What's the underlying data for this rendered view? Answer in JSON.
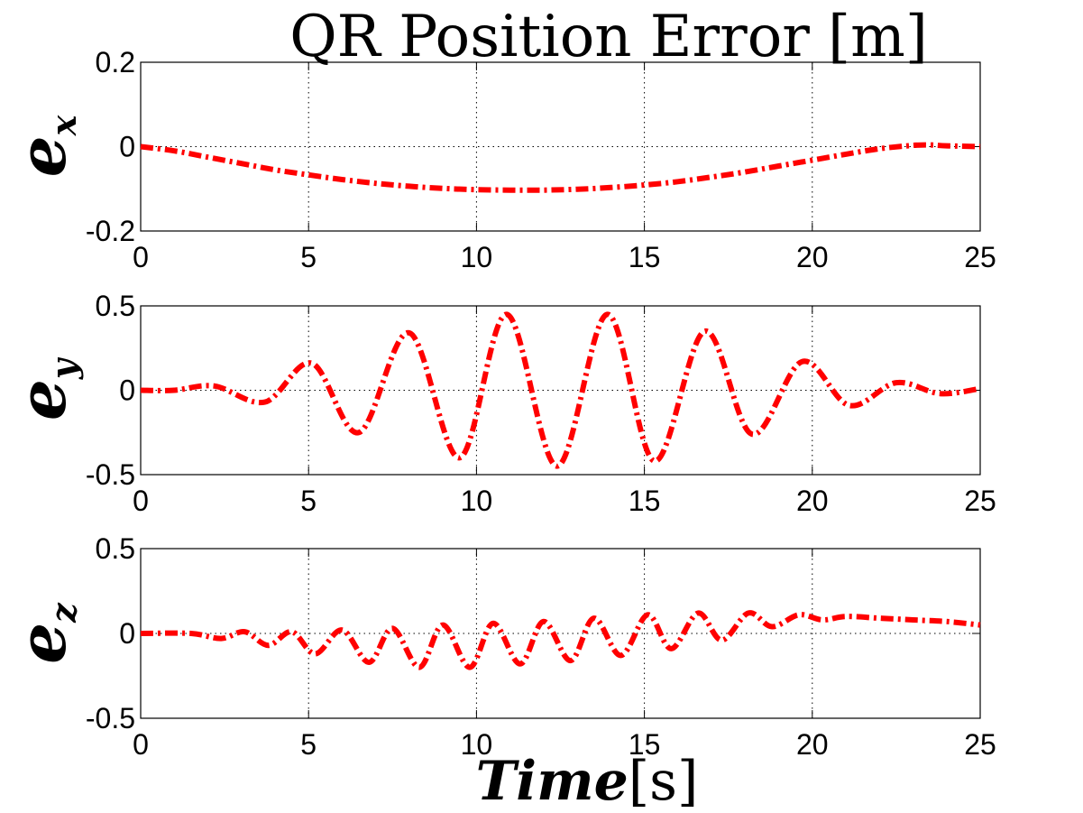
{
  "chart_data": [
    {
      "type": "line",
      "title": "QR Position Error [m]",
      "ylabel": "e",
      "ylabel_sub": "x",
      "xlabel": "",
      "xlim": [
        0,
        25
      ],
      "ylim": [
        -0.2,
        0.2
      ],
      "xticks": [
        "0",
        "5",
        "10",
        "15",
        "20",
        "25"
      ],
      "yticks": [
        "-0.2",
        "0",
        "0.2"
      ],
      "grid": true,
      "color": "#ff0000",
      "series": [
        {
          "x": [
            0,
            1,
            2,
            3,
            4,
            5,
            6,
            7,
            8,
            9,
            10,
            11,
            12,
            13,
            14,
            15,
            16,
            17,
            18,
            19,
            20,
            21,
            22,
            23,
            23.5,
            24,
            25
          ],
          "y": [
            0,
            -0.01,
            -0.025,
            -0.04,
            -0.055,
            -0.067,
            -0.078,
            -0.087,
            -0.094,
            -0.099,
            -0.102,
            -0.103,
            -0.103,
            -0.101,
            -0.097,
            -0.091,
            -0.083,
            -0.072,
            -0.06,
            -0.046,
            -0.032,
            -0.018,
            -0.005,
            0.003,
            0.004,
            0.002,
            0
          ]
        }
      ]
    },
    {
      "type": "line",
      "title": "",
      "ylabel": "e",
      "ylabel_sub": "y",
      "xlabel": "",
      "xlim": [
        0,
        25
      ],
      "ylim": [
        -0.5,
        0.5
      ],
      "xticks": [
        "0",
        "5",
        "10",
        "15",
        "20",
        "25"
      ],
      "yticks": [
        "-0.5",
        "0",
        "0.5"
      ],
      "grid": true,
      "color": "#ff0000",
      "series": [
        {
          "x": [
            0,
            1,
            2.2,
            3.7,
            5.1,
            6.5,
            8,
            9.5,
            10.9,
            12.4,
            13.9,
            15.3,
            16.8,
            18.2,
            19.7,
            21.1,
            22.5,
            23.8,
            25
          ],
          "y": [
            0,
            0,
            0.025,
            -0.07,
            0.16,
            -0.25,
            0.34,
            -0.4,
            0.45,
            -0.45,
            0.45,
            -0.42,
            0.35,
            -0.26,
            0.17,
            -0.09,
            0.045,
            -0.02,
            0.01
          ]
        }
      ]
    },
    {
      "type": "line",
      "title": "",
      "ylabel": "e",
      "ylabel_sub": "z",
      "xlabel": "Time[s]",
      "xlabel_main": "Time",
      "xlabel_unit": "[s]",
      "xlim": [
        0,
        25
      ],
      "ylim": [
        -0.5,
        0.5
      ],
      "xticks": [
        "0",
        "5",
        "10",
        "15",
        "20",
        "25"
      ],
      "yticks": [
        "-0.5",
        "0",
        "0.5"
      ],
      "grid": true,
      "color": "#ff0000",
      "series": [
        {
          "x": [
            0,
            1.5,
            2.4,
            3.1,
            3.8,
            4.5,
            5.2,
            6,
            6.8,
            7.5,
            8.3,
            9,
            9.8,
            10.5,
            11.3,
            12,
            12.8,
            13.5,
            14.3,
            15.1,
            15.8,
            16.6,
            17.3,
            18.1,
            18.8,
            19.6,
            20.3,
            21,
            22,
            23,
            24,
            25
          ],
          "y": [
            0,
            0,
            -0.03,
            0.01,
            -0.07,
            0.01,
            -0.12,
            0.02,
            -0.17,
            0.03,
            -0.2,
            0.05,
            -0.2,
            0.06,
            -0.18,
            0.07,
            -0.16,
            0.09,
            -0.13,
            0.11,
            -0.09,
            0.12,
            -0.04,
            0.12,
            0.04,
            0.11,
            0.08,
            0.1,
            0.09,
            0.08,
            0.07,
            0.05
          ]
        }
      ]
    }
  ]
}
